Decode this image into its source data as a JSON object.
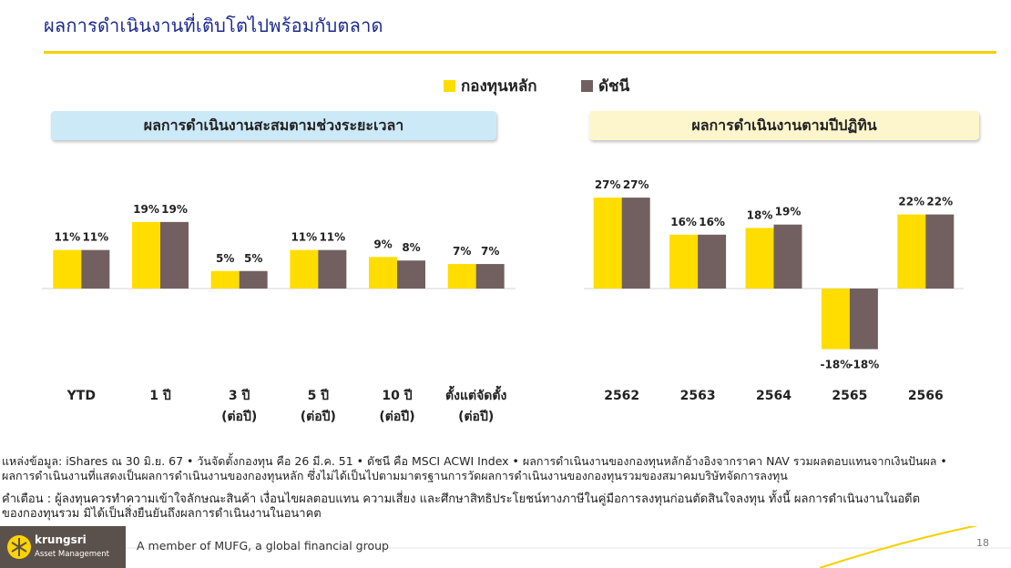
{
  "page": {
    "title": "ผลการดำเนินงานที่เติบโตไปพร้อมกับตลาด",
    "page_number": "18"
  },
  "legend": [
    {
      "label": "กองทุนหลัก",
      "color": "#ffdd00"
    },
    {
      "label": "ดัชนี",
      "color": "#726060"
    }
  ],
  "panels": {
    "left_title": "ผลการดำเนินงานสะสมตามช่วงระยะเวลา",
    "right_title": "ผลการดำเนินงานตามปีปฏิทิน"
  },
  "chart_data": [
    {
      "type": "bar",
      "title": "ผลการดำเนินงานสะสมตามช่วงระยะเวลา",
      "categories": [
        "YTD",
        "1 ปี",
        "3 ปี",
        "5 ปี",
        "10 ปี",
        "ตั้งแต่จัดตั้ง"
      ],
      "category_sublabels": [
        "",
        "",
        "(ต่อปี)",
        "(ต่อปี)",
        "(ต่อปี)",
        "(ต่อปี)"
      ],
      "series": [
        {
          "name": "กองทุนหลัก",
          "values": [
            11,
            19,
            5,
            11,
            9,
            7
          ],
          "labels": [
            "11%",
            "19%",
            "5%",
            "11%",
            "9%",
            "7%"
          ]
        },
        {
          "name": "ดัชนี",
          "values": [
            11,
            19,
            5,
            11,
            8,
            7
          ],
          "labels": [
            "11%",
            "19%",
            "5%",
            "11%",
            "8%",
            "7%"
          ]
        }
      ],
      "unit": "%"
    },
    {
      "type": "bar",
      "title": "ผลการดำเนินงานตามปีปฏิทิน",
      "categories": [
        "2562",
        "2563",
        "2564",
        "2565",
        "2566"
      ],
      "series": [
        {
          "name": "กองทุนหลัก",
          "values": [
            27,
            16,
            18,
            -18,
            22
          ],
          "labels": [
            "27%",
            "16%",
            "18%",
            "-18%",
            "22%"
          ]
        },
        {
          "name": "ดัชนี",
          "values": [
            27,
            16,
            19,
            -18,
            22
          ],
          "labels": [
            "27%",
            "16%",
            "19%",
            "-18%",
            "22%"
          ]
        }
      ],
      "unit": "%"
    }
  ],
  "notes": {
    "source_line1": "แหล่งข้อมูล: iShares ณ 30 มิ.ย. 67 • วันจัดตั้งกองทุน คือ 26 มี.ค. 51 • ดัชนี คือ MSCI ACWI Index • ผลการดำเนินงานของกองทุนหลักอ้างอิงจากราคา NAV รวมผลตอบแทนจากเงินปันผล •",
    "source_line2": "ผลการดำเนินงานที่แสดงเป็นผลการดำเนินงานของกองทุนหลัก ซึ่งไม่ได้เป็นไปตามมาตรฐานการวัดผลการดำเนินงานของกองทุนรวมของสมาคมบริษัทจัดการลงทุน",
    "warning_line1": "คำเตือน : ผู้ลงทุนควรทำความเข้าใจลักษณะสินค้า เงื่อนไขผลตอบแทน ความเสี่ยง และศึกษาสิทธิประโยชน์ทางภาษีในคู่มือการลงทุนก่อนตัดสินใจลงทุน ทั้งนี้ ผลการดำเนินงานในอดีต",
    "warning_line2": "ของกองทุนรวม มิได้เป็นสิ่งยืนยันถึงผลการดำเนินงานในอนาคต"
  },
  "footer": {
    "brand": "krungsri",
    "brand_sub": "Asset Management",
    "tagline": "A member of MUFG, a global financial group"
  },
  "colors": {
    "title": "#1c2a8f",
    "accent": "#f5d000",
    "left_header_bg": "#cce9f8",
    "right_header_bg": "#fdf6cc",
    "fund_bar": "#ffdd00",
    "index_bar": "#726060",
    "footer_logo_bg": "#5b514c"
  }
}
